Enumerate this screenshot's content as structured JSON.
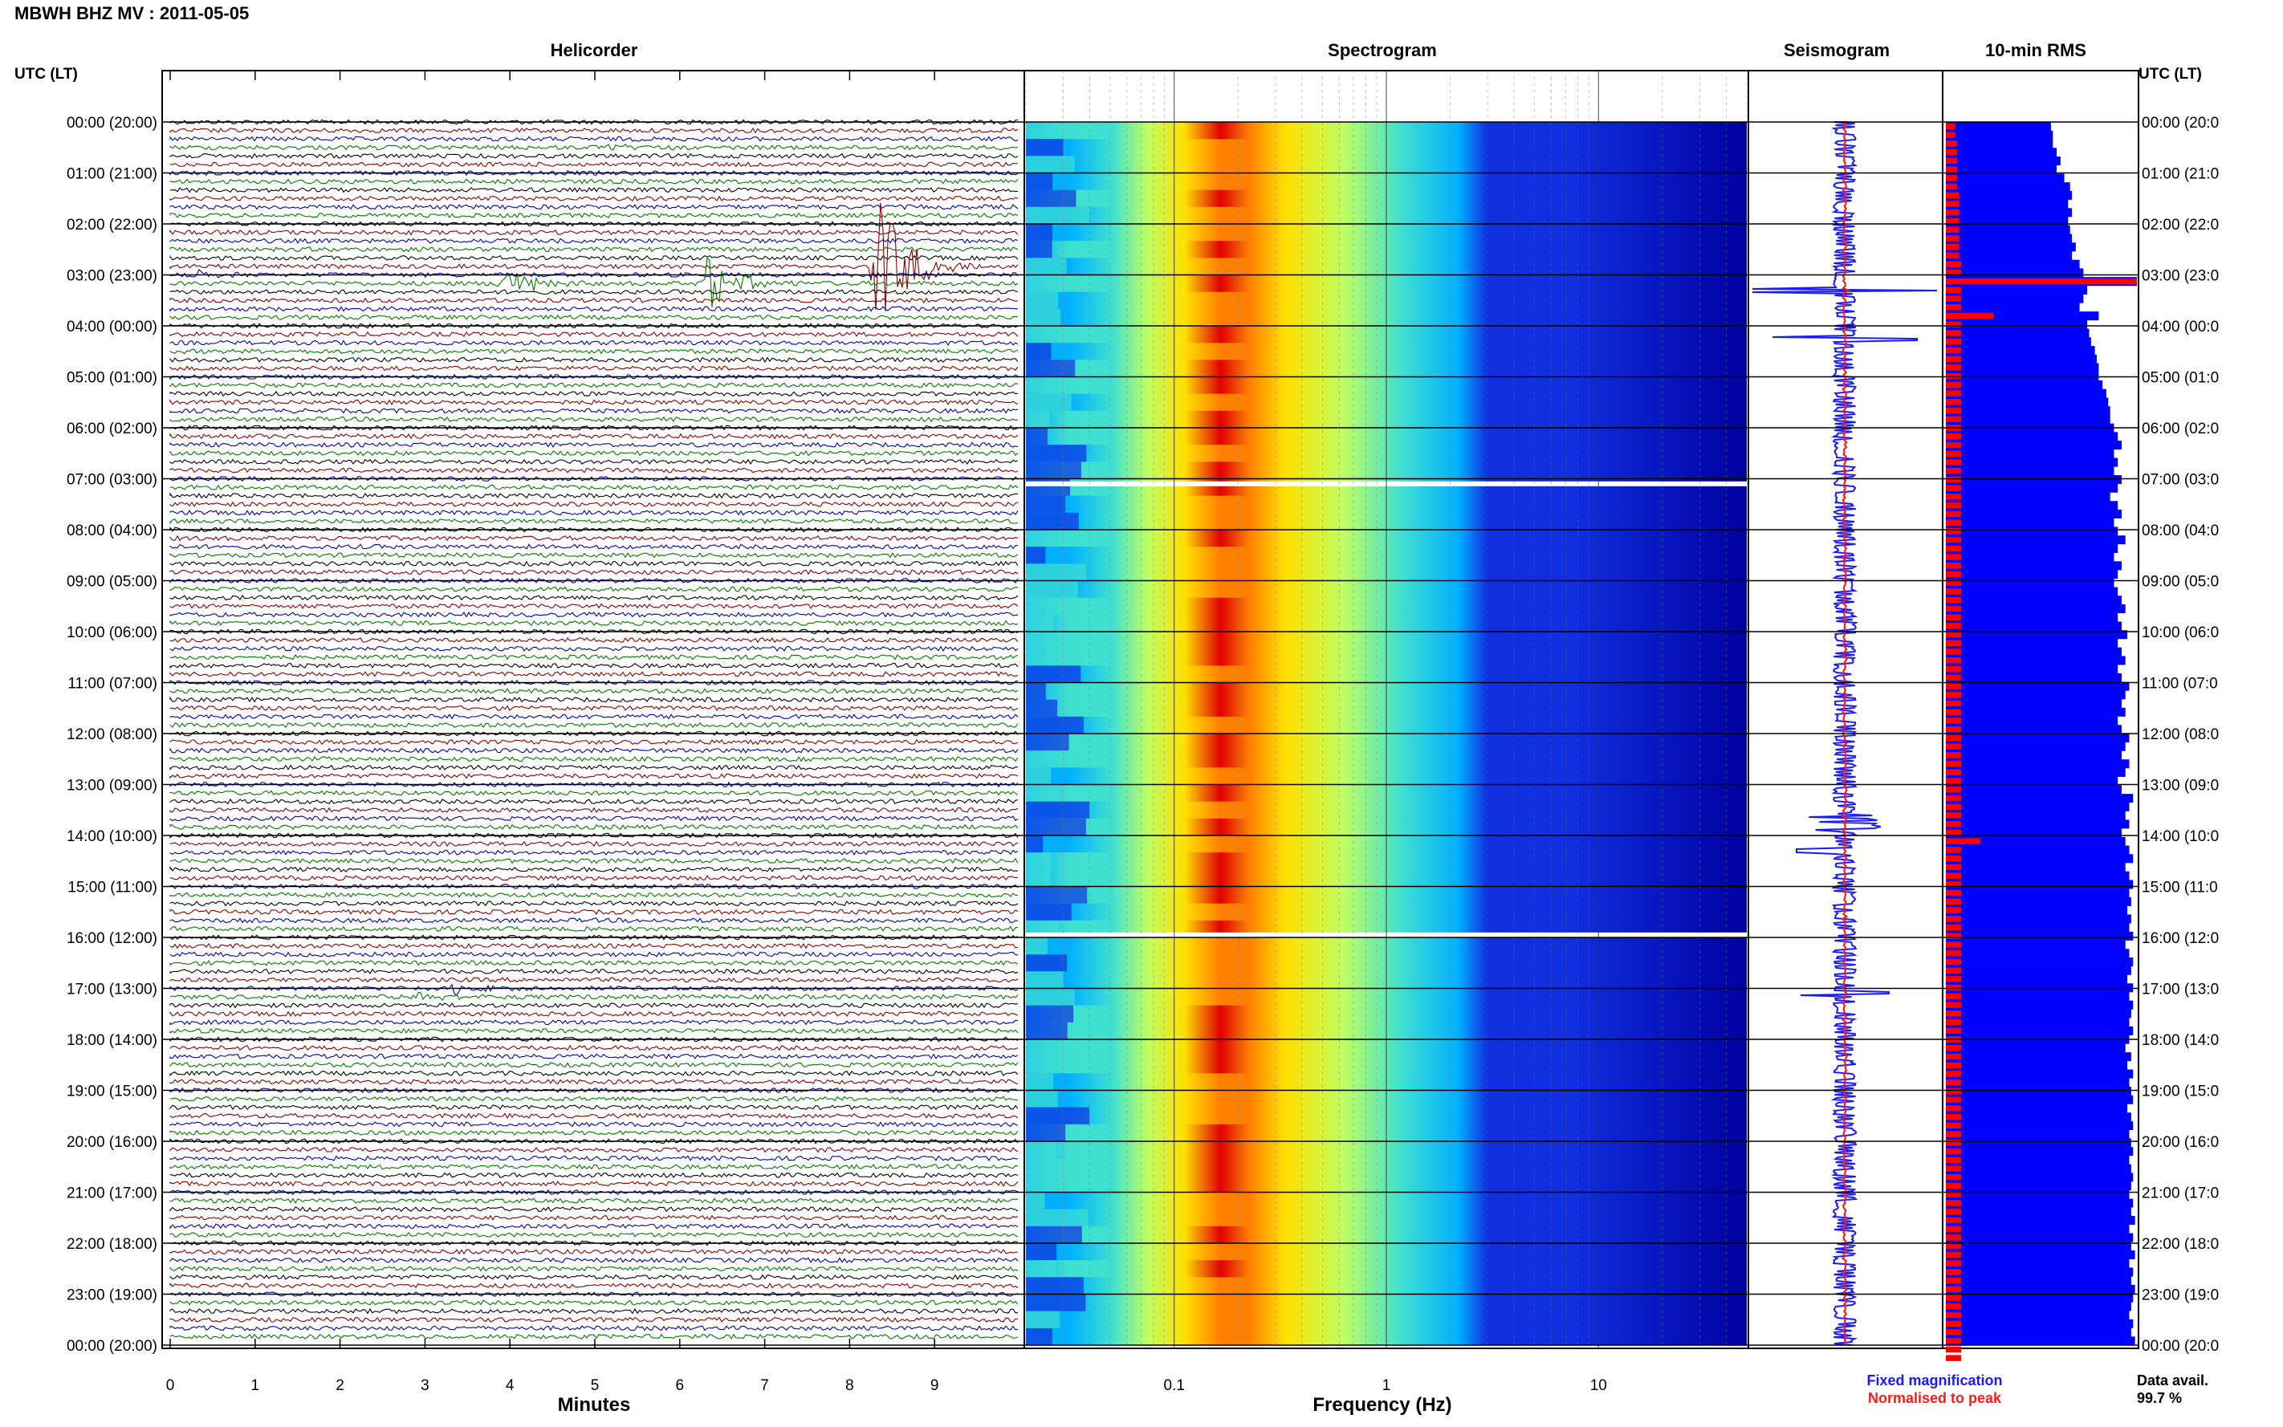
{
  "header": {
    "title": "MBWH BHZ MV : 2011-05-05"
  },
  "panels": {
    "helicorder": "Helicorder",
    "spectrogram": "Spectrogram",
    "seismogram": "Seismogram",
    "rms": "10-min RMS"
  },
  "time_axis_label": "UTC (LT)",
  "time_labels": [
    "00:00 (20:00)",
    "01:00 (21:00)",
    "02:00 (22:00)",
    "03:00 (23:00)",
    "04:00 (00:00)",
    "05:00 (01:00)",
    "06:00 (02:00)",
    "07:00 (03:00)",
    "08:00 (04:00)",
    "09:00 (05:00)",
    "10:00 (06:00)",
    "11:00 (07:00)",
    "12:00 (08:00)",
    "13:00 (09:00)",
    "14:00 (10:00)",
    "15:00 (11:00)",
    "16:00 (12:00)",
    "17:00 (13:00)",
    "18:00 (14:00)",
    "19:00 (15:00)",
    "20:00 (16:00)",
    "21:00 (17:00)",
    "22:00 (18:00)",
    "23:00 (19:00)",
    "00:00 (20:00)"
  ],
  "time_labels_right": [
    "00:00 (20:0",
    "01:00 (21:0",
    "02:00 (22:0",
    "03:00 (23:0",
    "04:00 (00:0",
    "05:00 (01:0",
    "06:00 (02:0",
    "07:00 (03:0",
    "08:00 (04:0",
    "09:00 (05:0",
    "10:00 (06:0",
    "11:00 (07:0",
    "12:00 (08:0",
    "13:00 (09:0",
    "14:00 (10:0",
    "15:00 (11:0",
    "16:00 (12:0",
    "17:00 (13:0",
    "18:00 (14:0",
    "19:00 (15:0",
    "20:00 (16:0",
    "21:00 (17:0",
    "22:00 (18:0",
    "23:00 (19:0",
    "00:00 (20:0"
  ],
  "legend": {
    "fixed": "Fixed magnification",
    "normalised": "Normalised to peak",
    "fixed_color": "#1a1aff",
    "normalised_color": "#ff1a1a"
  },
  "data_avail": {
    "label": "Data avail.",
    "value": "99.7 %"
  },
  "colors": {
    "trace_cycle": [
      "#000000",
      "#8b0000",
      "#0000b0",
      "#007a00"
    ],
    "rms_fixed": "#0000ff",
    "rms_norm": "#ff0000"
  },
  "chart_data": [
    {
      "type": "line",
      "panel": "Helicorder",
      "xlabel": "Minutes",
      "x_ticks": [
        "0",
        "1",
        "2",
        "3",
        "4",
        "5",
        "6",
        "7",
        "8",
        "9"
      ],
      "xlim": [
        0,
        10
      ],
      "rows_per_hour": 6,
      "hours": 24,
      "events": [
        {
          "row": 3,
          "minute": 5.2,
          "amp": 6,
          "color": "#000000"
        },
        {
          "row": 18,
          "minute": 0.3,
          "amp": 6,
          "color": "#000000"
        },
        {
          "row": 19,
          "minute": 3.9,
          "amp": 25,
          "color": "#8b0000"
        },
        {
          "row": 19,
          "minute": 6.3,
          "amp": 40,
          "color": "#8b0000"
        },
        {
          "row": 17,
          "minute": 8.3,
          "amp": 110,
          "color": "#007a00"
        },
        {
          "row": 102,
          "minute": 3.3,
          "amp": 8,
          "color": "#000000"
        },
        {
          "row": 103,
          "minute": 2.9,
          "amp": 8,
          "color": "#007a00"
        }
      ]
    },
    {
      "type": "heatmap",
      "panel": "Spectrogram",
      "xlabel": "Frequency (Hz)",
      "x_scale": "log",
      "xlim": [
        0.02,
        50
      ],
      "x_ticks": [
        "0.1",
        "1",
        "10"
      ],
      "colormap": [
        "#0000a0",
        "#1030e0",
        "#00b0ff",
        "#40e0d0",
        "#c0ff60",
        "#ffe000",
        "#ff8000",
        "#e00000"
      ],
      "gaps_hours": [
        7.1,
        15.95
      ]
    },
    {
      "type": "line",
      "panel": "Seismogram",
      "series": [
        {
          "name": "Fixed magnification",
          "color": "#1a1aff"
        },
        {
          "name": "Normalised to peak",
          "color": "#ff1a1a"
        }
      ]
    },
    {
      "type": "bar",
      "panel": "10-min RMS",
      "series": [
        {
          "name": "Fixed magnification",
          "values": [
            0.55,
            0.56,
            0.56,
            0.58,
            0.6,
            0.58,
            0.62,
            0.65,
            0.66,
            0.64,
            0.66,
            0.64,
            0.65,
            0.66,
            0.68,
            0.66,
            0.7,
            0.72,
            1.0,
            0.74,
            0.72,
            0.7,
            0.8,
            0.74,
            0.75,
            0.76,
            0.78,
            0.79,
            0.8,
            0.8,
            0.82,
            0.84,
            0.85,
            0.86,
            0.86,
            0.88,
            0.9,
            0.92,
            0.88,
            0.9,
            0.88,
            0.92,
            0.9,
            0.86,
            0.9,
            0.92,
            0.88,
            0.9,
            0.94,
            0.9,
            0.88,
            0.92,
            0.9,
            0.88,
            0.9,
            0.92,
            0.94,
            0.9,
            0.92,
            0.95,
            0.9,
            0.92,
            0.94,
            0.9,
            0.92,
            0.96,
            0.94,
            0.92,
            0.94,
            0.9,
            0.92,
            0.96,
            0.94,
            0.92,
            0.96,
            0.94,
            0.9,
            0.92,
            0.98,
            0.96,
            0.94,
            0.96,
            0.92,
            0.94,
            0.96,
            0.98,
            0.94,
            0.96,
            0.98,
            0.96,
            0.97,
            0.95,
            0.97,
            0.96,
            0.98,
            0.94,
            0.96,
            0.98,
            0.97,
            0.95,
            0.98,
            0.96,
            0.98,
            0.97,
            0.96,
            0.98,
            0.96,
            0.94,
            0.97,
            0.95,
            0.98,
            0.96,
            0.97,
            0.98,
            0.95,
            0.97,
            0.98,
            0.96,
            0.97,
            0.98,
            0.96,
            0.97,
            0.98,
            0.97,
            0.96,
            0.98,
            0.97,
            0.99,
            0.96,
            0.98,
            0.97,
            0.99,
            0.96,
            0.98,
            0.97,
            0.99,
            0.98,
            0.97,
            0.96,
            0.98,
            0.97,
            0.99
          ]
        },
        {
          "name": "Normalised to peak",
          "values": [
            0.05,
            0.05,
            0.06,
            0.06,
            0.06,
            0.06,
            0.06,
            0.06,
            0.07,
            0.07,
            0.07,
            0.07,
            0.07,
            0.07,
            0.07,
            0.07,
            0.08,
            0.08,
            1.0,
            0.08,
            0.08,
            0.08,
            0.25,
            0.08,
            0.08,
            0.08,
            0.08,
            0.08,
            0.08,
            0.08,
            0.08,
            0.08,
            0.08,
            0.08,
            0.08,
            0.08,
            0.08,
            0.08,
            0.08,
            0.08,
            0.08,
            0.08,
            0.08,
            0.08,
            0.08,
            0.08,
            0.08,
            0.08,
            0.08,
            0.08,
            0.08,
            0.08,
            0.08,
            0.08,
            0.08,
            0.08,
            0.08,
            0.08,
            0.08,
            0.08,
            0.08,
            0.08,
            0.08,
            0.08,
            0.08,
            0.08,
            0.08,
            0.08,
            0.08,
            0.08,
            0.08,
            0.08,
            0.08,
            0.08,
            0.08,
            0.08,
            0.08,
            0.08,
            0.08,
            0.08,
            0.08,
            0.08,
            0.08,
            0.18,
            0.08,
            0.08,
            0.08,
            0.08,
            0.08,
            0.08,
            0.08,
            0.08,
            0.08,
            0.08,
            0.08,
            0.08,
            0.08,
            0.08,
            0.08,
            0.08,
            0.08,
            0.08,
            0.08,
            0.08,
            0.08,
            0.08,
            0.08,
            0.08,
            0.08,
            0.08,
            0.08,
            0.08,
            0.08,
            0.08,
            0.08,
            0.08,
            0.08,
            0.08,
            0.08,
            0.08,
            0.08,
            0.08,
            0.08,
            0.08,
            0.08,
            0.08,
            0.08,
            0.08,
            0.08,
            0.08,
            0.08,
            0.08,
            0.08,
            0.08,
            0.08,
            0.08,
            0.08,
            0.08,
            0.08,
            0.08,
            0.08,
            0.08,
            0.08,
            0.08
          ]
        }
      ]
    }
  ]
}
